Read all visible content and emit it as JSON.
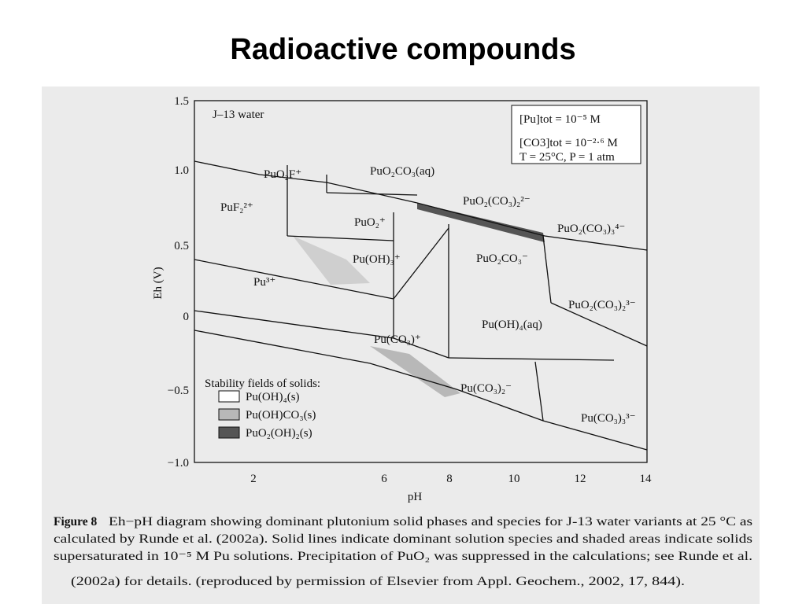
{
  "header": {
    "title": "Radioactive compounds"
  },
  "figure": {
    "inset_label": "J–13 water",
    "conditions": [
      "[Pu]tot = 10⁻⁵ M",
      "[CO3]tot = 10⁻²·⁶ M",
      "T = 25°C, P = 1 atm"
    ],
    "y_axis_label": "Eh (V)",
    "x_axis_label": "pH",
    "y_tick_labels": [
      "1.5",
      "1.0",
      "0.5",
      "0",
      "−0.5",
      "−1.0"
    ],
    "x_tick_labels": [
      "2",
      "6",
      "8",
      "10",
      "12",
      "14"
    ],
    "regions": [
      "PuO₂F⁺",
      "PuO₂CO₃(aq)",
      "PuF₂²⁺",
      "PuO₂(CO₃)₂²⁻",
      "PuO₂⁺",
      "PuO₂(CO₃)₃⁴⁻",
      "Pu(OH)₃⁺",
      "PuO₂CO₃⁻",
      "Pu³⁺",
      "PuO₂(CO₃)₂³⁻",
      "Pu(OH)₄(aq)",
      "Pu(CO₃)⁺",
      "Pu(CO₃)₂⁻",
      "Pu(CO₃)₃³⁻"
    ],
    "legend_title": "Stability fields of solids:",
    "legend": [
      "Pu(OH)₄(s)",
      "Pu(OH)CO₃(s)",
      "PuO₂(OH)₂(s)"
    ]
  },
  "caption": {
    "label": "Figure 8",
    "lines": [
      "Eh−pH diagram showing dominant plutonium solid phases and species for J-13 water variants at 25 °C as",
      "calculated by Runde et al. (2002a). Solid lines indicate dominant solution species and shaded areas indicate solids",
      "supersaturated in 10⁻⁵ M Pu solutions. Precipitation of PuO₂ was suppressed in the calculations; see Runde et al.",
      "(2002a) for details. (reproduced by permission of Elsevier from Appl. Geochem., 2002, 17, 844)."
    ]
  }
}
